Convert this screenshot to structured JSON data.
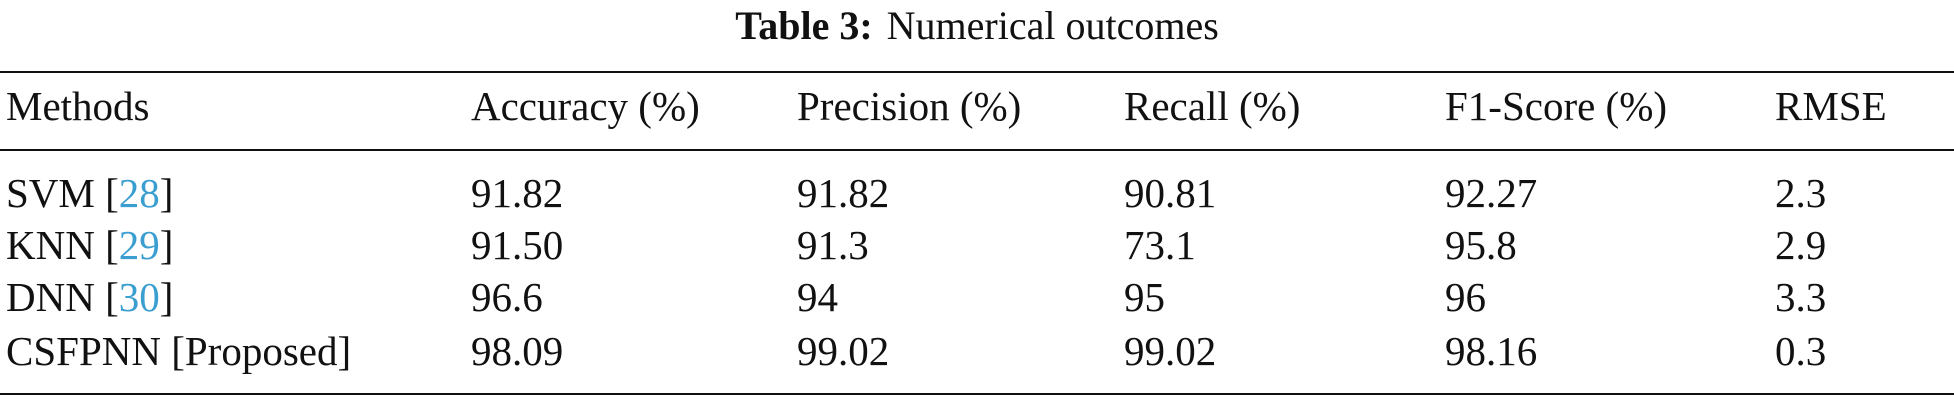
{
  "table": {
    "caption_label": "Table 3:",
    "caption_text": "Numerical outcomes",
    "header": [
      "Methods",
      "Accuracy (%)",
      "Precision (%)",
      "Recall (%)",
      "F1-Score (%)",
      "RMSE"
    ],
    "rows": [
      {
        "method": [
          "SVM [",
          "28",
          "]"
        ],
        "values": [
          "91.82",
          "91.82",
          "90.81",
          "92.27",
          "2.3"
        ]
      },
      {
        "method": [
          "KNN [",
          "29",
          "]"
        ],
        "values": [
          "91.50",
          "91.3",
          "73.1",
          "95.8",
          "2.9"
        ]
      },
      {
        "method": [
          "DNN [",
          "30",
          "]"
        ],
        "values": [
          "96.6",
          "94",
          "95",
          "96",
          "3.3"
        ]
      },
      {
        "method": [
          "CSFPNN [Proposed]"
        ],
        "values": [
          "98.09",
          "99.02",
          "99.02",
          "98.16",
          "0.3"
        ]
      }
    ]
  }
}
